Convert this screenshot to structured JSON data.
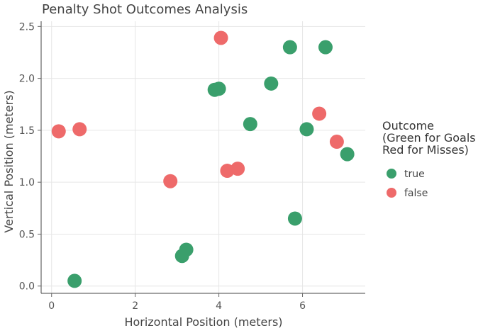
{
  "chart_data": {
    "type": "scatter",
    "title": "Penalty Shot Outcomes Analysis",
    "xlabel": "Horizontal Position (meters)",
    "ylabel": "Vertical Position (meters)",
    "xlim": [
      -0.25,
      7.5
    ],
    "ylim": [
      -0.07,
      2.55
    ],
    "xticks": [
      0,
      2,
      4,
      6
    ],
    "yticks": [
      0,
      0.5,
      1,
      1.5,
      2,
      2.5
    ],
    "xtick_labels": [
      "0",
      "2",
      "4",
      "6"
    ],
    "ytick_labels": [
      "0.0",
      "0.5",
      "1.0",
      "1.5",
      "2.0",
      "2.5"
    ],
    "grid": true,
    "legend": {
      "title_lines": [
        "Outcome",
        "(Green for Goals",
        "Red for Misses)"
      ],
      "placement": "right",
      "entries": [
        {
          "label": "true",
          "color": "#3a9f6c"
        },
        {
          "label": "false",
          "color": "#ee6a6a"
        }
      ]
    },
    "series": [
      {
        "name": "true",
        "color": "#3a9f6c",
        "points": [
          {
            "x": 0.55,
            "y": 0.05
          },
          {
            "x": 3.12,
            "y": 0.29
          },
          {
            "x": 3.22,
            "y": 0.35
          },
          {
            "x": 3.9,
            "y": 1.89
          },
          {
            "x": 4.0,
            "y": 1.9
          },
          {
            "x": 4.75,
            "y": 1.56
          },
          {
            "x": 5.25,
            "y": 1.95
          },
          {
            "x": 5.7,
            "y": 2.3
          },
          {
            "x": 5.82,
            "y": 0.65
          },
          {
            "x": 6.1,
            "y": 1.51
          },
          {
            "x": 6.55,
            "y": 2.3
          },
          {
            "x": 7.07,
            "y": 1.27
          }
        ]
      },
      {
        "name": "false",
        "color": "#ee6a6a",
        "points": [
          {
            "x": 0.17,
            "y": 1.49
          },
          {
            "x": 0.67,
            "y": 1.51
          },
          {
            "x": 2.84,
            "y": 1.01
          },
          {
            "x": 4.05,
            "y": 2.39
          },
          {
            "x": 4.2,
            "y": 1.11
          },
          {
            "x": 4.45,
            "y": 1.13
          },
          {
            "x": 6.4,
            "y": 1.66
          },
          {
            "x": 6.82,
            "y": 1.39
          }
        ]
      }
    ]
  }
}
